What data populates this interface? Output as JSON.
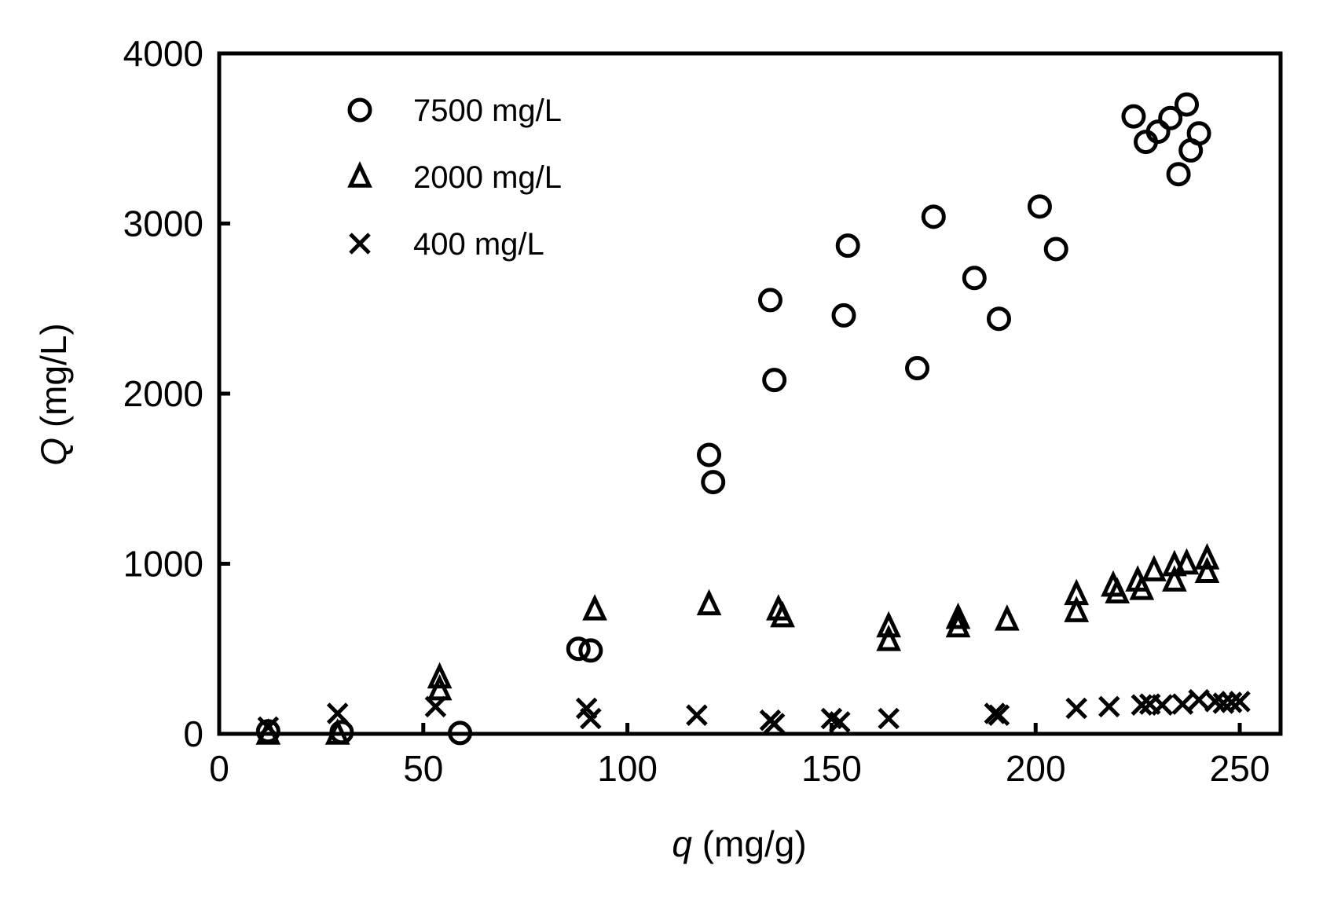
{
  "chart_data": {
    "type": "scatter",
    "title": "",
    "xlabel": {
      "symbol": "q",
      "unit": " (mg/g)"
    },
    "ylabel": {
      "symbol": "Q",
      "unit": " (mg/L)"
    },
    "xlim": [
      0,
      260
    ],
    "ylim": [
      0,
      4000
    ],
    "xticks": [
      0,
      50,
      100,
      150,
      200,
      250
    ],
    "yticks": [
      0,
      1000,
      2000,
      3000,
      4000
    ],
    "xtick_labels": [
      "0",
      "50",
      "100",
      "150",
      "200",
      "250"
    ],
    "ytick_labels": [
      "0",
      "1000",
      "2000",
      "3000",
      "4000"
    ],
    "grid": false,
    "legend_position": "top-left",
    "series": [
      {
        "name": "7500 mg/L",
        "marker": "circle",
        "points": [
          [
            12,
            15
          ],
          [
            30,
            10
          ],
          [
            59,
            5
          ],
          [
            88,
            500
          ],
          [
            91,
            490
          ],
          [
            120,
            1640
          ],
          [
            121,
            1480
          ],
          [
            135,
            2550
          ],
          [
            136,
            2080
          ],
          [
            153,
            2460
          ],
          [
            154,
            2870
          ],
          [
            171,
            2150
          ],
          [
            175,
            3040
          ],
          [
            185,
            2680
          ],
          [
            191,
            2440
          ],
          [
            201,
            3100
          ],
          [
            205,
            2850
          ],
          [
            224,
            3630
          ],
          [
            227,
            3480
          ],
          [
            230,
            3540
          ],
          [
            233,
            3620
          ],
          [
            235,
            3290
          ],
          [
            237,
            3700
          ],
          [
            238,
            3430
          ],
          [
            240,
            3530
          ]
        ]
      },
      {
        "name": "2000 mg/L",
        "marker": "triangle",
        "points": [
          [
            12,
            0
          ],
          [
            29,
            0
          ],
          [
            54,
            330
          ],
          [
            54,
            260
          ],
          [
            92,
            730
          ],
          [
            120,
            760
          ],
          [
            137,
            730
          ],
          [
            138,
            690
          ],
          [
            164,
            630
          ],
          [
            164,
            550
          ],
          [
            181,
            680
          ],
          [
            181,
            630
          ],
          [
            193,
            670
          ],
          [
            210,
            820
          ],
          [
            210,
            720
          ],
          [
            219,
            870
          ],
          [
            220,
            830
          ],
          [
            225,
            900
          ],
          [
            226,
            850
          ],
          [
            229,
            960
          ],
          [
            234,
            990
          ],
          [
            234,
            900
          ],
          [
            237,
            1000
          ],
          [
            242,
            1030
          ],
          [
            242,
            950
          ]
        ]
      },
      {
        "name": "400 mg/L",
        "marker": "x",
        "points": [
          [
            12,
            40
          ],
          [
            29,
            120
          ],
          [
            53,
            160
          ],
          [
            90,
            150
          ],
          [
            91,
            90
          ],
          [
            117,
            110
          ],
          [
            135,
            80
          ],
          [
            136,
            60
          ],
          [
            150,
            90
          ],
          [
            152,
            70
          ],
          [
            164,
            90
          ],
          [
            190,
            120
          ],
          [
            191,
            110
          ],
          [
            210,
            150
          ],
          [
            218,
            160
          ],
          [
            226,
            170
          ],
          [
            228,
            175
          ],
          [
            231,
            170
          ],
          [
            236,
            175
          ],
          [
            240,
            200
          ],
          [
            244,
            190
          ],
          [
            246,
            180
          ],
          [
            248,
            185
          ],
          [
            250,
            190
          ]
        ]
      }
    ]
  }
}
